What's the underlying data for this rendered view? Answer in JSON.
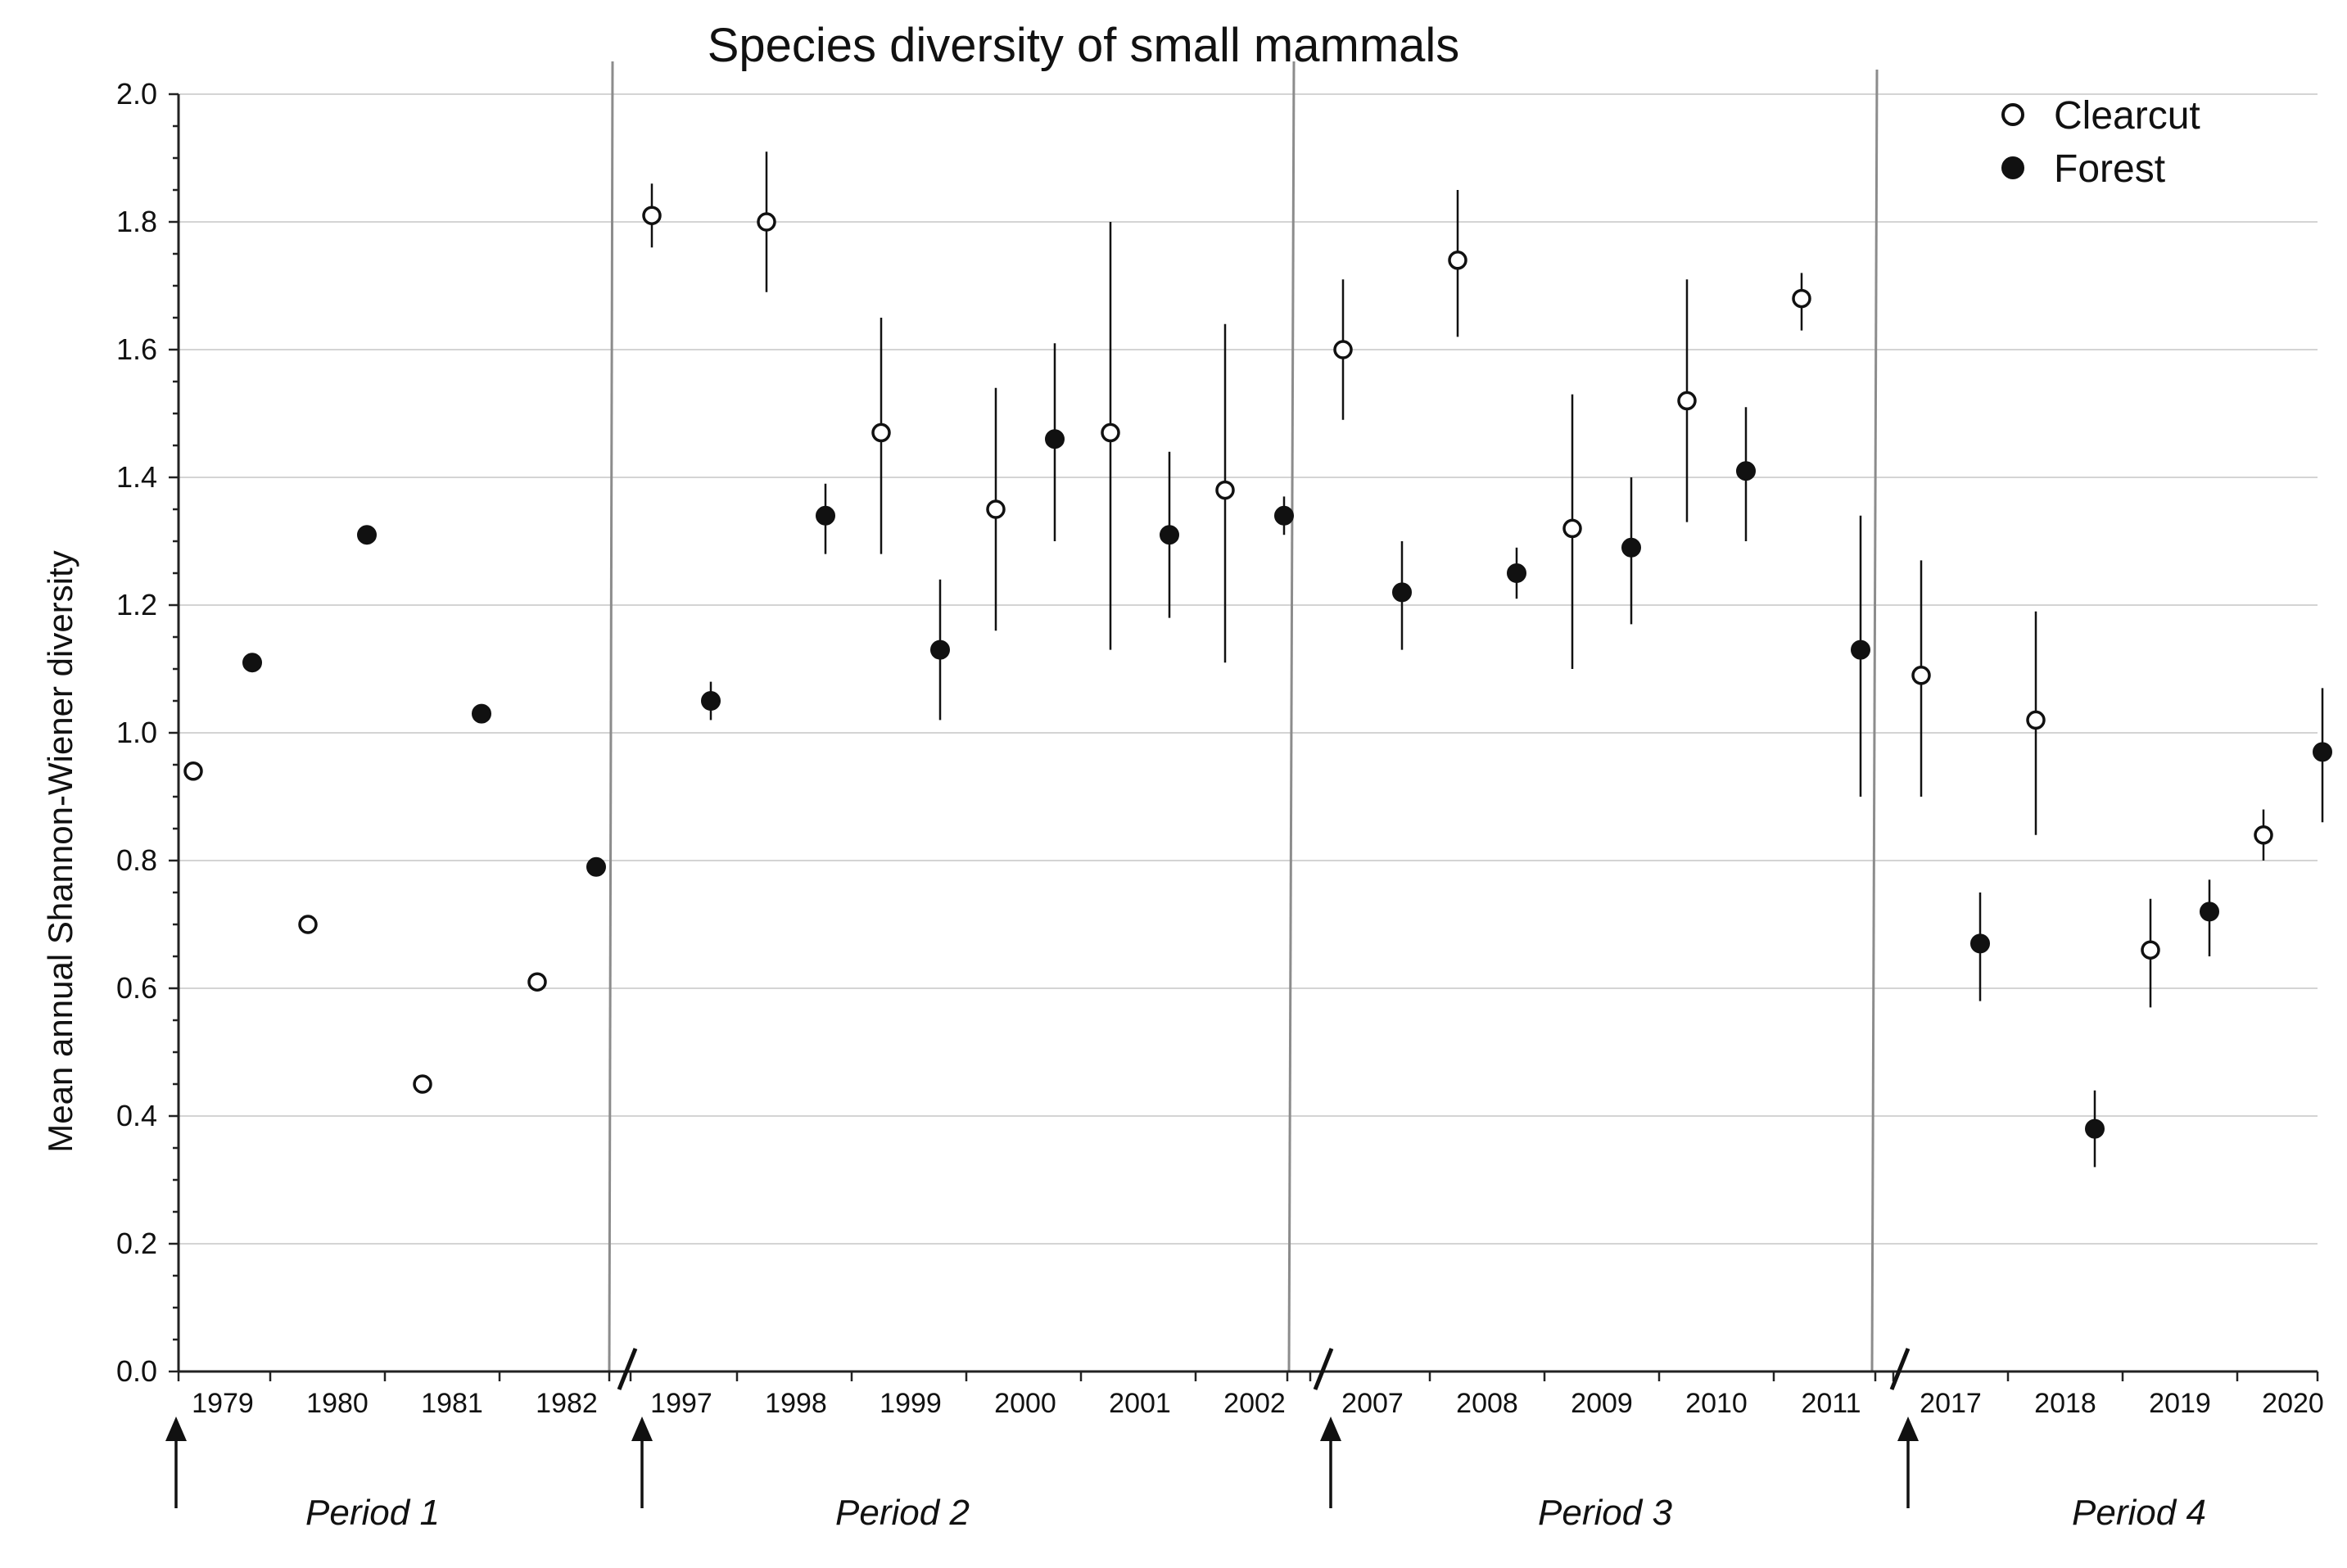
{
  "chart_data": {
    "type": "scatter",
    "title": "Species diversity of small mammals",
    "xlabel": "",
    "ylabel": "Mean annual  Shannon-Wiener diversity",
    "ylim": [
      0,
      2.0
    ],
    "yticks": [
      "0.0",
      "0.2",
      "0.4",
      "0.6",
      "0.8",
      "1.0",
      "1.2",
      "1.4",
      "1.6",
      "1.8",
      "2.0"
    ],
    "grid": true,
    "legend_position": "top-right",
    "categories": [
      "1979",
      "1980",
      "1981",
      "1982",
      "1997",
      "1998",
      "1999",
      "2000",
      "2001",
      "2002",
      "2007",
      "2008",
      "2009",
      "2010",
      "2011",
      "2017",
      "2018",
      "2019",
      "2020"
    ],
    "periods": [
      {
        "label": "Period 1",
        "years": [
          "1979",
          "1980",
          "1981",
          "1982"
        ]
      },
      {
        "label": "Period 2",
        "years": [
          "1997",
          "1998",
          "1999",
          "2000",
          "2001",
          "2002"
        ]
      },
      {
        "label": "Period 3",
        "years": [
          "2007",
          "2008",
          "2009",
          "2010",
          "2011"
        ]
      },
      {
        "label": "Period 4",
        "years": [
          "2017",
          "2018",
          "2019",
          "2020"
        ]
      }
    ],
    "series": [
      {
        "name": "Clearcut",
        "marker": "open-circle",
        "values": [
          0.94,
          0.7,
          0.45,
          0.61,
          1.81,
          1.8,
          1.47,
          1.35,
          1.47,
          1.38,
          1.6,
          1.74,
          1.32,
          1.52,
          1.68,
          1.09,
          1.02,
          0.66,
          0.84
        ],
        "err_low": [
          null,
          null,
          null,
          null,
          1.76,
          1.69,
          1.28,
          1.16,
          1.13,
          1.11,
          1.49,
          1.62,
          1.1,
          1.33,
          1.63,
          0.9,
          0.84,
          0.57,
          0.8
        ],
        "err_high": [
          null,
          null,
          null,
          null,
          1.86,
          1.91,
          1.65,
          1.54,
          1.8,
          1.64,
          1.71,
          1.85,
          1.53,
          1.71,
          1.72,
          1.27,
          1.19,
          0.74,
          0.88
        ]
      },
      {
        "name": "Forest",
        "marker": "filled-circle",
        "values": [
          1.11,
          1.31,
          1.03,
          0.79,
          1.05,
          1.34,
          1.13,
          1.46,
          1.31,
          1.34,
          1.22,
          1.25,
          1.29,
          1.41,
          1.13,
          0.67,
          0.38,
          0.72,
          0.97
        ],
        "err_low": [
          null,
          null,
          null,
          null,
          1.02,
          1.28,
          1.02,
          1.3,
          1.18,
          1.31,
          1.13,
          1.21,
          1.17,
          1.3,
          0.9,
          0.58,
          0.32,
          0.65,
          0.86
        ],
        "err_high": [
          null,
          null,
          null,
          null,
          1.08,
          1.39,
          1.24,
          1.61,
          1.44,
          1.37,
          1.3,
          1.29,
          1.4,
          1.51,
          1.34,
          0.75,
          0.44,
          0.77,
          1.07
        ]
      }
    ]
  }
}
